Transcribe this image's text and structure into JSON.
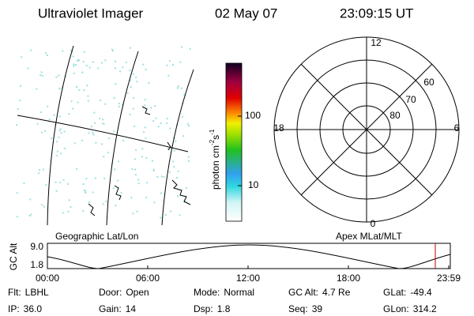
{
  "header": {
    "title": "Ultraviolet Imager",
    "date": "02 May 07",
    "time": "23:09:15 UT"
  },
  "map": {
    "caption": "Geographic Lat/Lon"
  },
  "colorbar": {
    "label": [
      "photon cm",
      "-2",
      "s",
      "-1"
    ],
    "ticks": [
      "100",
      "10"
    ]
  },
  "polar": {
    "caption": "Apex MLat/MLT",
    "mlt_labels": [
      "12",
      "18",
      "6",
      "0"
    ],
    "lat_labels": [
      "60",
      "70",
      "80"
    ]
  },
  "altitude": {
    "ylabel": "GC Alt",
    "yticks": [
      "9.0",
      "1.8"
    ],
    "xticks": [
      "00:00",
      "06:00",
      "12:00",
      "18:00",
      "23:59"
    ]
  },
  "footer": {
    "rows": [
      [
        [
          "Flt:",
          "LBHL"
        ],
        [
          "Door:",
          "Open"
        ],
        [
          "Mode:",
          "Normal"
        ],
        [
          "GC Alt:",
          "4.7 Re"
        ],
        [
          "GLat:",
          "-49.4"
        ]
      ],
      [
        [
          "IP:",
          "36.0"
        ],
        [
          "Gain:",
          "14"
        ],
        [
          "Dsp:",
          "1.8"
        ],
        [
          "Seq:",
          "39"
        ],
        [
          "GLon:",
          "314.2"
        ]
      ]
    ]
  }
}
